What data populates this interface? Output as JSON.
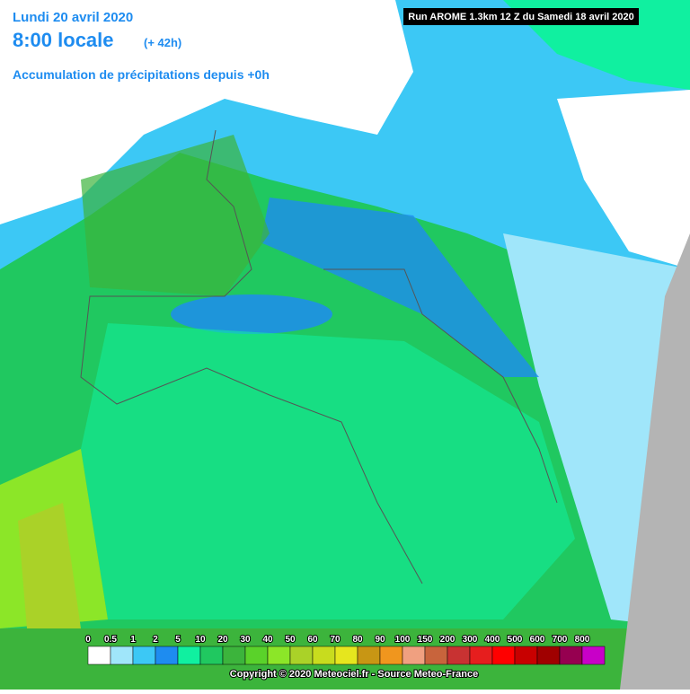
{
  "header": {
    "date": "Lundi 20 avril 2020",
    "time": "8:00 locale",
    "lead": "(+ 42h)",
    "subtitle": "Accumulation de précipitations depuis +0h"
  },
  "run": "Run AROME 1.3km 12 Z du Samedi 18 avril 2020",
  "legend": {
    "labels": [
      "0",
      "0.5",
      "1",
      "2",
      "5",
      "10",
      "20",
      "30",
      "40",
      "50",
      "60",
      "70",
      "80",
      "90",
      "100",
      "150",
      "200",
      "300",
      "400",
      "500",
      "600",
      "700",
      "800"
    ],
    "colors": [
      "#ffffff",
      "#a0e6fa",
      "#3cc8f5",
      "#1e8cf0",
      "#10f0a0",
      "#20c860",
      "#3cb43c",
      "#5ad22a",
      "#8ce628",
      "#aad228",
      "#c8dc1e",
      "#e6e61e",
      "#c89614",
      "#f0961e",
      "#f0a080",
      "#c8643c",
      "#c83232",
      "#e61e1e",
      "#ff0000",
      "#c80000",
      "#a00000",
      "#960050",
      "#c800c8"
    ]
  },
  "copyright": "Copyright © 2020 Meteociel.fr - Source Meteo-France"
}
